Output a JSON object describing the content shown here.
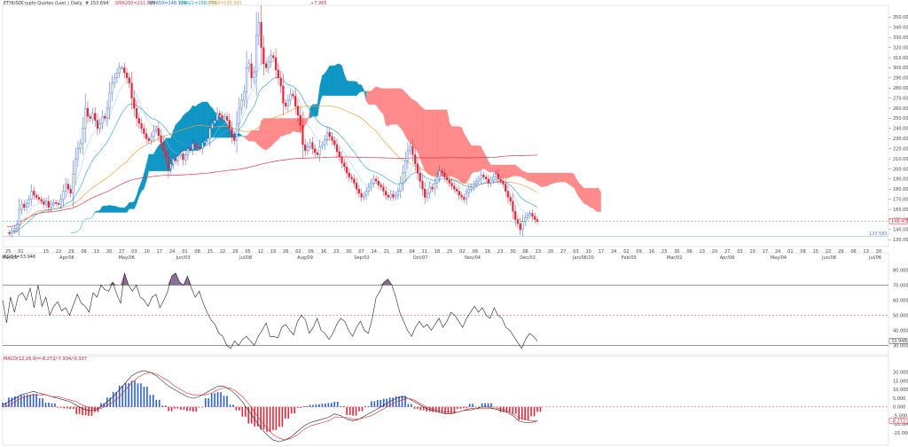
{
  "header": {
    "symbol": "ETHUSD",
    "source": "Crypto Quotes",
    "type_label": "(Last )",
    "interval": "Daily",
    "last": "# 153.694",
    "sma200": "SMA200=211.885",
    "sma50": "SMA50=148.729",
    "ema21": "EMA21=158.770",
    "ema9": "EMA9=155.991",
    "change": "+7.985"
  },
  "price_axis": {
    "ticks": [
      "350.000",
      "340.000",
      "330.000",
      "320.000",
      "310.000",
      "300.000",
      "290.000",
      "280.000",
      "270.000",
      "260.000",
      "250.000",
      "240.000",
      "230.000",
      "220.000",
      "210.000",
      "200.000",
      "190.000",
      "180.000",
      "170.000",
      "160.000",
      "150.000",
      "140.000",
      "130.000"
    ],
    "last_badge": "148.471",
    "low_marker": "133.583"
  },
  "date_axis": {
    "days": [
      "25",
      "01",
      "",
      "15",
      "22",
      "29",
      "06",
      "13",
      "20",
      "27",
      "03",
      "10",
      "17",
      "24",
      "01",
      "08",
      "15",
      "22",
      "29",
      "05",
      "12",
      "19",
      "26",
      "02",
      "09",
      "16",
      "23",
      "30",
      "07",
      "14",
      "21",
      "28",
      "04",
      "11",
      "18",
      "25",
      "02",
      "09",
      "16",
      "23",
      "30",
      "06",
      "13",
      "20",
      "27",
      "03",
      "10",
      "17",
      "24",
      "02",
      "09",
      "16",
      "23",
      "30",
      "06",
      "13",
      "20",
      "27",
      "03",
      "10",
      "17",
      "24",
      "01",
      "08",
      "15",
      "22",
      "29",
      "06",
      "13",
      "20"
    ],
    "months": [
      "Mar/19",
      "Apr/06",
      "May/06",
      "Jun/03",
      "Jul/08",
      "Aug/09",
      "Sep/02",
      "Oct/07",
      "Nov/04",
      "Dec/02",
      "Jan/06/20",
      "Feb/03",
      "Mar/02",
      "Apr/06",
      "May/04",
      "Jun/08",
      "Jul/06"
    ]
  },
  "rsi": {
    "title": "RSI14=33.946",
    "ticks": [
      "80.000",
      "70.000",
      "60.000",
      "50.000",
      "40.000",
      "30.000"
    ],
    "last_badge": "33.946"
  },
  "macd": {
    "title": "MACD(12,26,9)=-8.272/-7.934/-0.337",
    "ticks": [
      "20.000",
      "15.000",
      "10.000",
      "5.000",
      "0.000",
      "-5.000",
      "-10.000",
      "-15.000"
    ],
    "last_badge": "-8.272"
  },
  "colors": {
    "bull": "#2b5fd9",
    "bear": "#e0263a",
    "cloud_bull": "#0e96c4",
    "cloud_bear": "#ff8a8a",
    "ema_fast": "#42a5e0",
    "sma50": "#f2a03c",
    "sma200": "#d8354d",
    "rsi_line": "#222222",
    "signal": "#d9262b"
  },
  "chart_data": [
    {
      "type": "candlestick",
      "ylim": [
        125,
        360
      ],
      "series": [
        {
          "name": "ETHUSD",
          "close": [
            137,
            136,
            139,
            141,
            145,
            160,
            165,
            162,
            166,
            170,
            178,
            174,
            172,
            170,
            168,
            165,
            168,
            162,
            165,
            167,
            166,
            165,
            170,
            178,
            185,
            180,
            176,
            195,
            210,
            220,
            225,
            240,
            260,
            252,
            250,
            255,
            248,
            240,
            245,
            252,
            250,
            260,
            275,
            285,
            290,
            295,
            300,
            300,
            295,
            290,
            285,
            270,
            260,
            250,
            245,
            240,
            235,
            230,
            228,
            232,
            238,
            240,
            233,
            226,
            218,
            212,
            200,
            205,
            210,
            208,
            213,
            215,
            209,
            214,
            220,
            219,
            225,
            222,
            221,
            220,
            226,
            228,
            230,
            240,
            245,
            248,
            255,
            253,
            250,
            252,
            248,
            240,
            232,
            228,
            245,
            260,
            268,
            276,
            300,
            304,
            290,
            296,
            332,
            345,
            320,
            304,
            300,
            306,
            312,
            310,
            298,
            290,
            282,
            265,
            262,
            268,
            274,
            272,
            262,
            253,
            243,
            224,
            218,
            222,
            226,
            220,
            216,
            214,
            222,
            224,
            229,
            236,
            232,
            228,
            224,
            217,
            212,
            206,
            202,
            196,
            192,
            190,
            186,
            180,
            176,
            172,
            174,
            178,
            182,
            186,
            190,
            188,
            184,
            182,
            178,
            174,
            172,
            175,
            172,
            174,
            178,
            186,
            196,
            208,
            218,
            222,
            214,
            205,
            196,
            188,
            180,
            172,
            176,
            182,
            180,
            186,
            192,
            198,
            196,
            192,
            189,
            186,
            183,
            180,
            178,
            174,
            172,
            170,
            176,
            180,
            182,
            185,
            188,
            190,
            194,
            192,
            190,
            186,
            189,
            192,
            195,
            190,
            188,
            185,
            178,
            172,
            168,
            158,
            150,
            146,
            140,
            148,
            152,
            154,
            156,
            153,
            150,
            148
          ]
        }
      ]
    },
    {
      "type": "line",
      "ylim": [
        25,
        85
      ],
      "series": [
        {
          "name": "RSI14",
          "values": [
            60,
            45,
            62,
            52,
            63,
            65,
            60,
            68,
            55,
            70,
            56,
            62,
            50,
            56,
            59,
            53,
            55,
            50,
            57,
            64,
            58,
            56,
            52,
            65,
            62,
            70,
            67,
            66,
            72,
            64,
            58,
            78,
            70,
            66,
            70,
            62,
            60,
            56,
            62,
            64,
            55,
            60,
            66,
            76,
            78,
            72,
            70,
            76,
            68,
            62,
            66,
            58,
            52,
            47,
            44,
            38,
            36,
            30,
            28,
            33,
            30,
            34,
            36,
            33,
            30,
            36,
            40,
            45,
            36,
            36,
            35,
            42,
            44,
            40,
            37,
            46,
            50,
            47,
            38,
            42,
            48,
            40,
            38,
            34,
            38,
            44,
            48,
            46,
            40,
            36,
            42,
            46,
            40,
            38,
            48,
            62,
            66,
            72,
            74,
            70,
            62,
            52,
            46,
            40,
            36,
            42,
            46,
            42,
            44,
            40,
            44,
            48,
            42,
            46,
            52,
            50,
            46,
            42,
            48,
            52,
            56,
            52,
            55,
            50,
            48,
            55,
            50,
            48,
            42,
            40,
            36,
            32,
            28,
            34,
            38,
            36,
            33
          ]
        }
      ]
    },
    {
      "type": "bar+line",
      "ylim": [
        -20,
        25
      ],
      "series": [
        {
          "name": "MACD",
          "values": [
            1,
            3,
            5,
            7,
            8,
            9,
            8,
            7,
            6,
            5,
            4,
            3,
            1,
            -1,
            -2,
            -2,
            0,
            3,
            6,
            10,
            14,
            18,
            20,
            21,
            20,
            18,
            15,
            12,
            10,
            8,
            6,
            5,
            6,
            8,
            10,
            12,
            12,
            10,
            7,
            3,
            -2,
            -7,
            -12,
            -16,
            -19,
            -20,
            -19,
            -17,
            -14,
            -11,
            -9,
            -8,
            -7,
            -6,
            -4,
            -5,
            -7,
            -8,
            -7,
            -5,
            -3,
            -1,
            1,
            3,
            5,
            6,
            5,
            3,
            1,
            -1,
            -2,
            -3,
            -4,
            -4,
            -3,
            -2,
            -1,
            -1,
            0,
            0,
            -1,
            -2,
            -3,
            -5,
            -8,
            -9,
            -9,
            -8
          ]
        },
        {
          "name": "Signal",
          "values": [
            0,
            1,
            3,
            5,
            6,
            7,
            7,
            7,
            6,
            6,
            5,
            4,
            3,
            1,
            0,
            -1,
            -1,
            1,
            3,
            6,
            10,
            14,
            17,
            19,
            20,
            19,
            17,
            15,
            12,
            10,
            8,
            7,
            7,
            7,
            8,
            10,
            11,
            11,
            9,
            6,
            2,
            -3,
            -8,
            -12,
            -16,
            -18,
            -19,
            -18,
            -16,
            -13,
            -11,
            -10,
            -9,
            -8,
            -6,
            -6,
            -6,
            -7,
            -7,
            -6,
            -5,
            -3,
            -1,
            1,
            3,
            4,
            5,
            4,
            2,
            0,
            -1,
            -2,
            -3,
            -3,
            -3,
            -2,
            -2,
            -1,
            -1,
            -1,
            -1,
            -1,
            -2,
            -4,
            -6,
            -7,
            -8,
            -8
          ]
        }
      ]
    }
  ]
}
